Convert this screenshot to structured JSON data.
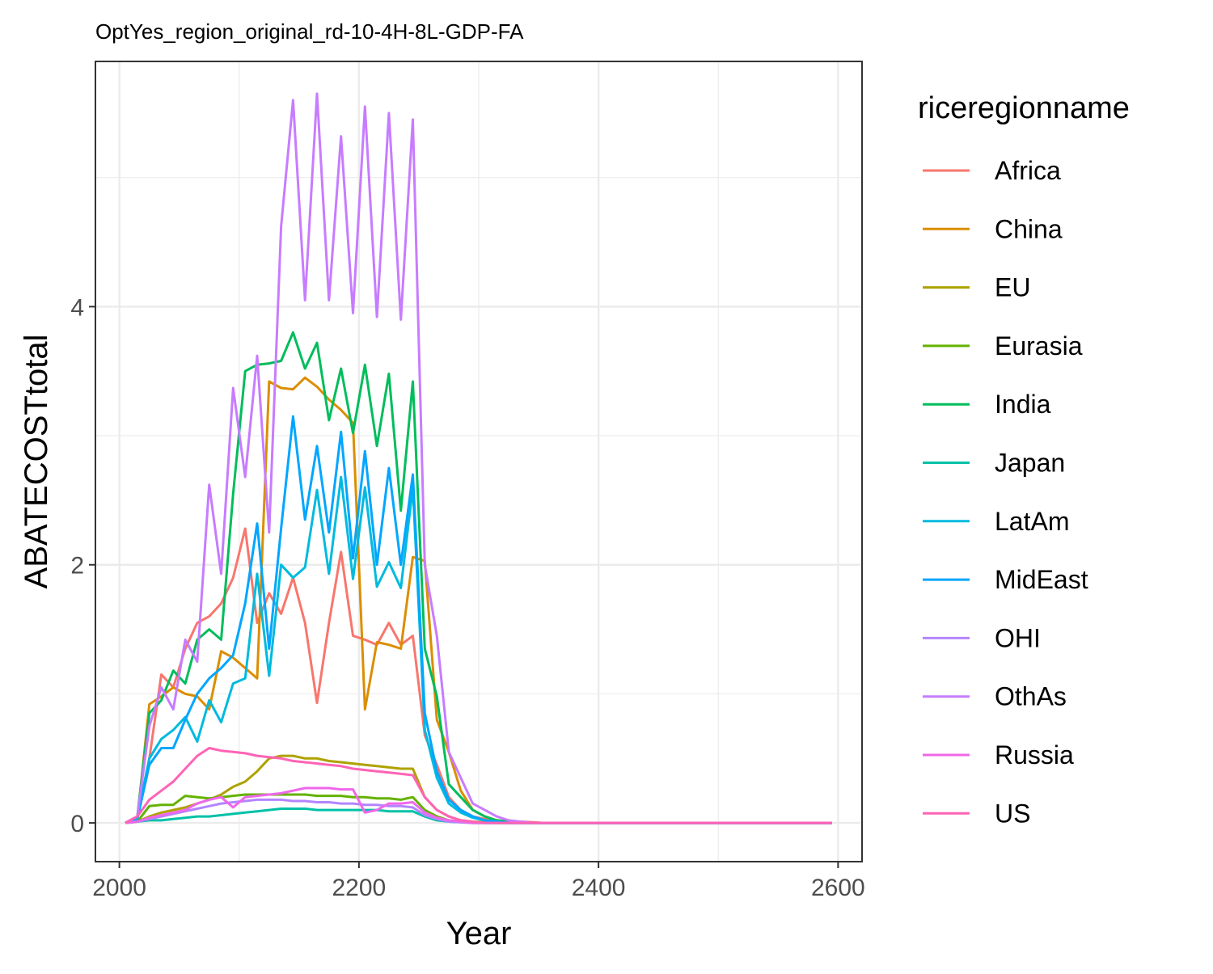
{
  "chart_data": {
    "type": "line",
    "title": "OptYes_region_original_rd-10-4H-8L-GDP-FA",
    "xlabel": "Year",
    "ylabel": "ABATECOSTtotal",
    "xlim": [
      1980,
      2620
    ],
    "ylim": [
      -0.3,
      5.9
    ],
    "x_ticks": [
      2000,
      2200,
      2400,
      2600
    ],
    "y_ticks": [
      0,
      2,
      4
    ],
    "x_tick_labels": [
      "2000",
      "2200",
      "2400",
      "2600"
    ],
    "y_tick_labels": [
      "0",
      "2",
      "4"
    ],
    "grid": true,
    "legend_title": "riceregionname",
    "legend_position": "right",
    "x": [
      2005,
      2015,
      2025,
      2035,
      2045,
      2055,
      2065,
      2075,
      2085,
      2095,
      2105,
      2115,
      2125,
      2135,
      2145,
      2155,
      2165,
      2175,
      2185,
      2195,
      2205,
      2215,
      2225,
      2235,
      2245,
      2255,
      2265,
      2275,
      2285,
      2295,
      2305,
      2315,
      2325,
      2335,
      2345,
      2355,
      2365,
      2375,
      2385,
      2395,
      2405,
      2415,
      2425,
      2435,
      2445,
      2455,
      2465,
      2475,
      2485,
      2495,
      2505,
      2515,
      2525,
      2535,
      2545,
      2555,
      2565,
      2575,
      2585,
      2595
    ],
    "series": [
      {
        "name": "Africa",
        "color": "#F8766D",
        "values": [
          0,
          0.05,
          0.5,
          1.15,
          1.05,
          1.35,
          1.55,
          1.6,
          1.7,
          1.9,
          2.28,
          1.55,
          1.78,
          1.62,
          1.9,
          1.55,
          0.93,
          1.55,
          2.1,
          1.45,
          1.42,
          1.38,
          1.55,
          1.38,
          1.45,
          0.68,
          0.45,
          0.2,
          0.1,
          0.05,
          0.03,
          0.02,
          0.01,
          0.01,
          0.005,
          0,
          0,
          0,
          0,
          0,
          0,
          0,
          0,
          0,
          0,
          0,
          0,
          0,
          0,
          0,
          0,
          0,
          0,
          0,
          0,
          0,
          0,
          0,
          0,
          0
        ]
      },
      {
        "name": "China",
        "color": "#DB8E00",
        "values": [
          0,
          0.03,
          0.92,
          0.98,
          1.05,
          1.0,
          0.98,
          0.88,
          1.33,
          1.28,
          1.2,
          1.12,
          3.42,
          3.37,
          3.36,
          3.45,
          3.38,
          3.28,
          3.2,
          3.1,
          0.88,
          1.4,
          1.38,
          1.35,
          2.06,
          2.03,
          0.8,
          0.55,
          0.25,
          0.1,
          0.05,
          0.02,
          0.01,
          0.005,
          0,
          0,
          0,
          0,
          0,
          0,
          0,
          0,
          0,
          0,
          0,
          0,
          0,
          0,
          0,
          0,
          0,
          0,
          0,
          0,
          0,
          0,
          0,
          0,
          0,
          0
        ]
      },
      {
        "name": "EU",
        "color": "#AEA200",
        "values": [
          0,
          0.01,
          0.05,
          0.08,
          0.1,
          0.12,
          0.15,
          0.18,
          0.22,
          0.28,
          0.32,
          0.4,
          0.5,
          0.52,
          0.52,
          0.5,
          0.5,
          0.48,
          0.47,
          0.46,
          0.45,
          0.44,
          0.43,
          0.42,
          0.42,
          0.2,
          0.1,
          0.05,
          0.02,
          0.01,
          0.005,
          0,
          0,
          0,
          0,
          0,
          0,
          0,
          0,
          0,
          0,
          0,
          0,
          0,
          0,
          0,
          0,
          0,
          0,
          0,
          0,
          0,
          0,
          0,
          0,
          0,
          0,
          0,
          0,
          0
        ]
      },
      {
        "name": "Eurasia",
        "color": "#64B200",
        "values": [
          0,
          0.01,
          0.13,
          0.14,
          0.14,
          0.21,
          0.2,
          0.19,
          0.2,
          0.21,
          0.22,
          0.22,
          0.22,
          0.22,
          0.22,
          0.22,
          0.21,
          0.21,
          0.21,
          0.2,
          0.2,
          0.19,
          0.19,
          0.18,
          0.2,
          0.1,
          0.05,
          0.02,
          0.01,
          0.005,
          0,
          0,
          0,
          0,
          0,
          0,
          0,
          0,
          0,
          0,
          0,
          0,
          0,
          0,
          0,
          0,
          0,
          0,
          0,
          0,
          0,
          0,
          0,
          0,
          0,
          0,
          0,
          0,
          0,
          0
        ]
      },
      {
        "name": "India",
        "color": "#00BD5C",
        "values": [
          0,
          0.05,
          0.85,
          0.95,
          1.18,
          1.08,
          1.42,
          1.5,
          1.42,
          2.55,
          3.5,
          3.55,
          3.56,
          3.58,
          3.8,
          3.52,
          3.72,
          3.12,
          3.52,
          3.02,
          3.55,
          2.92,
          3.48,
          2.42,
          3.42,
          1.35,
          0.98,
          0.3,
          0.2,
          0.1,
          0.05,
          0.02,
          0.01,
          0,
          0,
          0,
          0,
          0,
          0,
          0,
          0,
          0,
          0,
          0,
          0,
          0,
          0,
          0,
          0,
          0,
          0,
          0,
          0,
          0,
          0,
          0,
          0,
          0,
          0,
          0
        ]
      },
      {
        "name": "Japan",
        "color": "#00C1A7",
        "values": [
          0,
          0.01,
          0.02,
          0.02,
          0.03,
          0.04,
          0.05,
          0.05,
          0.06,
          0.07,
          0.08,
          0.09,
          0.1,
          0.11,
          0.11,
          0.11,
          0.1,
          0.1,
          0.1,
          0.1,
          0.1,
          0.1,
          0.09,
          0.09,
          0.09,
          0.05,
          0.02,
          0.01,
          0.005,
          0,
          0,
          0,
          0,
          0,
          0,
          0,
          0,
          0,
          0,
          0,
          0,
          0,
          0,
          0,
          0,
          0,
          0,
          0,
          0,
          0,
          0,
          0,
          0,
          0,
          0,
          0,
          0,
          0,
          0,
          0
        ]
      },
      {
        "name": "LatAm",
        "color": "#00BADE",
        "values": [
          0,
          0.04,
          0.5,
          0.65,
          0.72,
          0.82,
          0.63,
          0.95,
          0.78,
          1.08,
          1.12,
          1.93,
          1.14,
          2.0,
          1.9,
          1.98,
          2.58,
          1.93,
          2.68,
          1.89,
          2.6,
          1.83,
          2.02,
          1.82,
          2.6,
          0.72,
          0.35,
          0.15,
          0.08,
          0.04,
          0.02,
          0.01,
          0,
          0,
          0,
          0,
          0,
          0,
          0,
          0,
          0,
          0,
          0,
          0,
          0,
          0,
          0,
          0,
          0,
          0,
          0,
          0,
          0,
          0,
          0,
          0,
          0,
          0,
          0,
          0
        ]
      },
      {
        "name": "MidEast",
        "color": "#00A6FF",
        "values": [
          0,
          0.03,
          0.45,
          0.58,
          0.58,
          0.8,
          1.0,
          1.12,
          1.2,
          1.3,
          1.7,
          2.32,
          1.35,
          2.28,
          3.15,
          2.35,
          2.92,
          2.25,
          3.03,
          2.05,
          2.88,
          2.0,
          2.75,
          2.0,
          2.7,
          0.85,
          0.4,
          0.18,
          0.1,
          0.05,
          0.02,
          0.01,
          0,
          0,
          0,
          0,
          0,
          0,
          0,
          0,
          0,
          0,
          0,
          0,
          0,
          0,
          0,
          0,
          0,
          0,
          0,
          0,
          0,
          0,
          0,
          0,
          0,
          0,
          0,
          0
        ]
      },
      {
        "name": "OHI",
        "color": "#B385FF",
        "values": [
          0,
          0.01,
          0.03,
          0.05,
          0.07,
          0.09,
          0.11,
          0.13,
          0.15,
          0.16,
          0.17,
          0.18,
          0.18,
          0.18,
          0.17,
          0.17,
          0.16,
          0.16,
          0.15,
          0.15,
          0.14,
          0.14,
          0.13,
          0.13,
          0.12,
          0.06,
          0.03,
          0.01,
          0.005,
          0,
          0,
          0,
          0,
          0,
          0,
          0,
          0,
          0,
          0,
          0,
          0,
          0,
          0,
          0,
          0,
          0,
          0,
          0,
          0,
          0,
          0,
          0,
          0,
          0,
          0,
          0,
          0,
          0,
          0,
          0
        ]
      },
      {
        "name": "OthAs",
        "color": "#C77CFF",
        "values": [
          0,
          0.05,
          0.75,
          1.05,
          0.88,
          1.42,
          1.25,
          2.62,
          1.93,
          3.37,
          2.68,
          3.62,
          2.25,
          4.62,
          5.6,
          4.05,
          5.65,
          4.05,
          5.32,
          3.95,
          5.55,
          3.92,
          5.5,
          3.9,
          5.45,
          2.0,
          1.45,
          0.55,
          0.35,
          0.15,
          0.1,
          0.05,
          0.02,
          0.01,
          0,
          0,
          0,
          0,
          0,
          0,
          0,
          0,
          0,
          0,
          0,
          0,
          0,
          0,
          0,
          0,
          0,
          0,
          0,
          0,
          0,
          0,
          0,
          0,
          0,
          0
        ]
      },
      {
        "name": "Russia",
        "color": "#EF67EB",
        "values": [
          0,
          0.01,
          0.04,
          0.06,
          0.08,
          0.1,
          0.15,
          0.18,
          0.2,
          0.12,
          0.2,
          0.21,
          0.22,
          0.23,
          0.25,
          0.27,
          0.27,
          0.27,
          0.26,
          0.26,
          0.08,
          0.1,
          0.15,
          0.15,
          0.16,
          0.08,
          0.04,
          0.02,
          0.01,
          0,
          0,
          0,
          0,
          0,
          0,
          0,
          0,
          0,
          0,
          0,
          0,
          0,
          0,
          0,
          0,
          0,
          0,
          0,
          0,
          0,
          0,
          0,
          0,
          0,
          0,
          0,
          0,
          0,
          0,
          0
        ]
      },
      {
        "name": "US",
        "color": "#FF63B6",
        "values": [
          0,
          0.05,
          0.18,
          0.25,
          0.32,
          0.42,
          0.52,
          0.58,
          0.56,
          0.55,
          0.54,
          0.52,
          0.51,
          0.5,
          0.48,
          0.47,
          0.46,
          0.45,
          0.44,
          0.42,
          0.41,
          0.4,
          0.39,
          0.38,
          0.37,
          0.2,
          0.1,
          0.05,
          0.02,
          0.01,
          0,
          0,
          0,
          0,
          0,
          0,
          0,
          0,
          0,
          0,
          0,
          0,
          0,
          0,
          0,
          0,
          0,
          0,
          0,
          0,
          0,
          0,
          0,
          0,
          0,
          0,
          0,
          0,
          0,
          0
        ]
      }
    ]
  }
}
